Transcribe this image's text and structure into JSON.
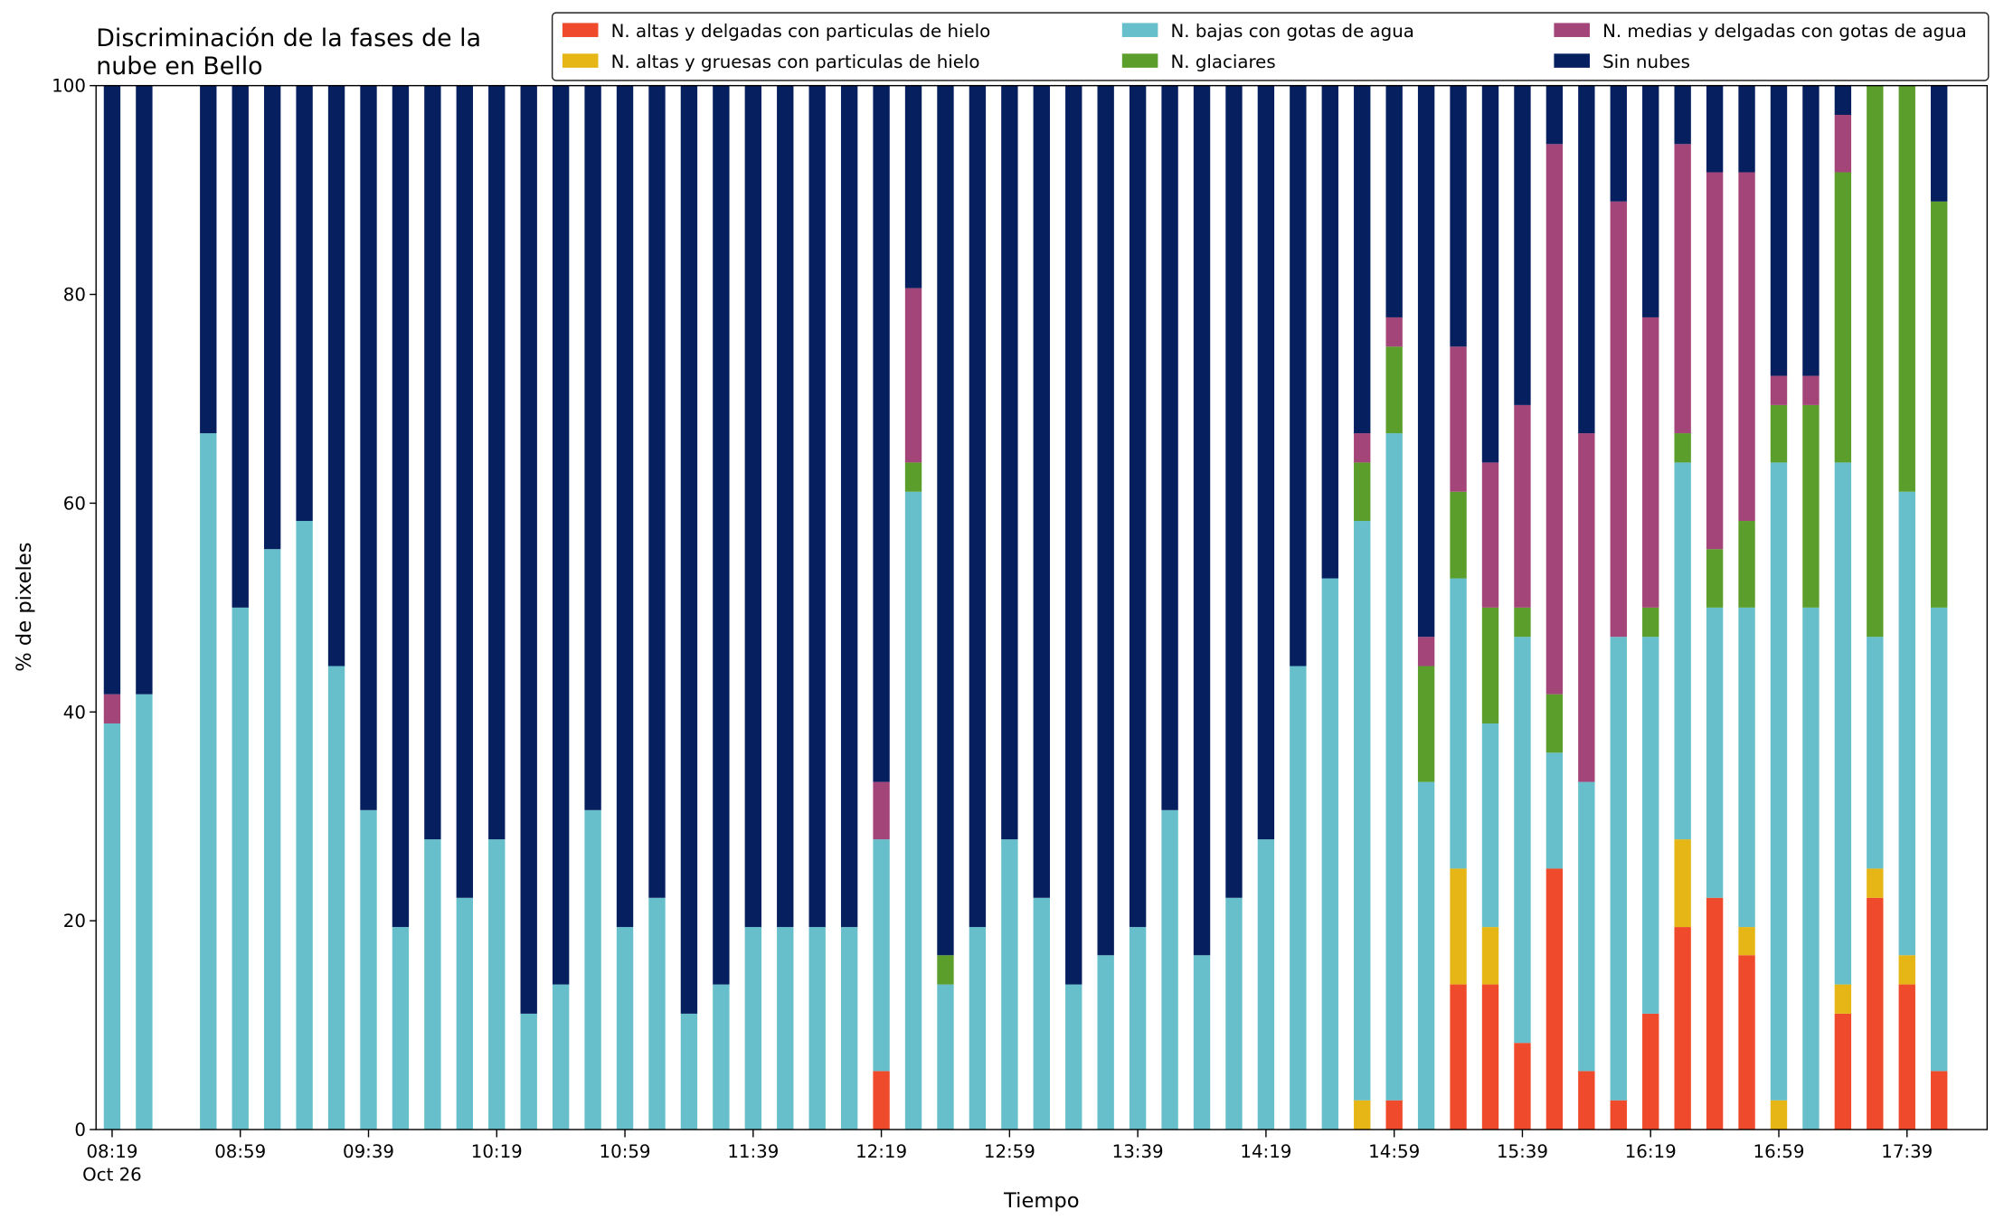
{
  "chart_data": {
    "type": "stacked_bar",
    "title": [
      "Discriminación de la fases de la",
      "nube en Bello"
    ],
    "xlabel": "Tiempo",
    "ylabel": "% de pixeles",
    "x": [
      "08:19",
      "08:29",
      "08:49",
      "08:59",
      "09:09",
      "09:19",
      "09:29",
      "09:39",
      "09:49",
      "09:59",
      "10:09",
      "10:19",
      "10:29",
      "10:39",
      "10:49",
      "10:59",
      "11:09",
      "11:19",
      "11:29",
      "11:39",
      "11:49",
      "11:59",
      "12:09",
      "12:19",
      "12:29",
      "12:39",
      "12:49",
      "12:59",
      "13:09",
      "13:19",
      "13:29",
      "13:39",
      "13:49",
      "13:59",
      "14:09",
      "14:19",
      "14:29",
      "14:39",
      "14:49",
      "14:59",
      "15:09",
      "15:19",
      "15:29",
      "15:39",
      "15:49",
      "15:59",
      "16:09",
      "16:19",
      "16:29",
      "16:39",
      "16:49",
      "16:59",
      "17:09",
      "17:19",
      "17:29",
      "17:39",
      "17:49"
    ],
    "xlim": [
      "08:14",
      "18:04"
    ],
    "xticks": [
      "08:19",
      "08:59",
      "09:39",
      "10:19",
      "10:59",
      "11:39",
      "12:19",
      "12:59",
      "13:39",
      "14:19",
      "14:59",
      "15:39",
      "16:19",
      "16:59",
      "17:39"
    ],
    "date_label": "Oct 26",
    "ylim": [
      0,
      100
    ],
    "yticks": [
      0,
      20,
      40,
      60,
      80,
      100
    ],
    "legend": {
      "position": "top-right",
      "ncol": 3
    },
    "series": [
      {
        "name": "N. altas y delgadas con particulas de hielo",
        "color": "#ef4a2b",
        "values": [
          0,
          0,
          0,
          0,
          0,
          0,
          0,
          0,
          0,
          0,
          0,
          0,
          0,
          0,
          0,
          0,
          0,
          0,
          0,
          0,
          0,
          0,
          0,
          5.6,
          0,
          0,
          0,
          0,
          0,
          0,
          0,
          0,
          0,
          0,
          0,
          0,
          0,
          0,
          0,
          2.8,
          0,
          13.9,
          13.9,
          8.3,
          25,
          5.6,
          2.8,
          11.1,
          19.4,
          22.2,
          16.7,
          0,
          0,
          11.1,
          22.2,
          13.9,
          5.6
        ]
      },
      {
        "name": "N. altas y gruesas con particulas de hielo",
        "color": "#e6b616",
        "values": [
          0,
          0,
          0,
          0,
          0,
          0,
          0,
          0,
          0,
          0,
          0,
          0,
          0,
          0,
          0,
          0,
          0,
          0,
          0,
          0,
          0,
          0,
          0,
          0,
          0,
          0,
          0,
          0,
          0,
          0,
          0,
          0,
          0,
          0,
          0,
          0,
          0,
          0,
          2.8,
          0,
          0,
          11.1,
          5.5,
          0,
          0,
          0,
          0,
          0,
          8.4,
          0,
          2.7,
          2.8,
          0,
          2.8,
          2.8,
          2.8,
          0
        ]
      },
      {
        "name": "N. bajas con gotas de agua",
        "color": "#66bfcb",
        "values": [
          38.9,
          41.7,
          66.7,
          50,
          55.6,
          58.3,
          44.4,
          30.6,
          19.4,
          27.8,
          22.2,
          27.8,
          11.1,
          13.9,
          30.6,
          19.4,
          22.2,
          11.1,
          13.9,
          19.4,
          19.4,
          19.4,
          19.4,
          22.2,
          61.1,
          13.9,
          19.4,
          27.8,
          22.2,
          13.9,
          16.7,
          19.4,
          30.6,
          16.7,
          22.2,
          27.8,
          44.4,
          52.8,
          55.5,
          63.9,
          33.3,
          27.8,
          19.5,
          38.9,
          11.1,
          27.7,
          44.4,
          36.1,
          36.1,
          27.8,
          30.6,
          61.1,
          50,
          50,
          22.2,
          44.4,
          44.4
        ]
      },
      {
        "name": "N. glaciares",
        "color": "#5c9e2c",
        "values": [
          0,
          0,
          0,
          0,
          0,
          0,
          0,
          0,
          0,
          0,
          0,
          0,
          0,
          0,
          0,
          0,
          0,
          0,
          0,
          0,
          0,
          0,
          0,
          0,
          2.8,
          2.8,
          0,
          0,
          0,
          0,
          0,
          0,
          0,
          0,
          0,
          0,
          0,
          0,
          5.6,
          8.3,
          11.1,
          8.3,
          11.1,
          2.8,
          5.6,
          0,
          0,
          2.8,
          2.8,
          5.6,
          8.3,
          5.5,
          19.4,
          27.8,
          52.8,
          38.9,
          38.9
        ]
      },
      {
        "name": "N. medias y delgadas con gotas de agua",
        "color": "#a4457a",
        "values": [
          2.8,
          0,
          0,
          0,
          0,
          0,
          0,
          0,
          0,
          0,
          0,
          0,
          0,
          0,
          0,
          0,
          0,
          0,
          0,
          0,
          0,
          0,
          0,
          5.5,
          16.7,
          0,
          0,
          0,
          0,
          0,
          0,
          0,
          0,
          0,
          0,
          0,
          0,
          0,
          2.8,
          2.8,
          2.8,
          13.9,
          13.9,
          19.4,
          52.7,
          33.4,
          41.7,
          27.8,
          27.7,
          36.1,
          33.4,
          2.8,
          2.8,
          5.5,
          0,
          0,
          0
        ]
      },
      {
        "name": "Sin nubes",
        "color": "#061f5f",
        "values": [
          58.3,
          58.3,
          33.3,
          50,
          44.4,
          41.7,
          55.6,
          69.4,
          80.6,
          72.2,
          77.8,
          72.2,
          88.9,
          86.1,
          69.4,
          80.6,
          77.8,
          88.9,
          86.1,
          80.6,
          80.6,
          80.6,
          80.6,
          66.7,
          19.4,
          83.3,
          80.6,
          72.2,
          77.8,
          86.1,
          83.3,
          80.6,
          69.4,
          83.3,
          77.8,
          72.2,
          55.6,
          47.2,
          33.3,
          22.2,
          52.8,
          25,
          36.1,
          30.6,
          5.6,
          33.3,
          11.1,
          22.2,
          5.6,
          8.3,
          8.3,
          27.8,
          27.8,
          2.8,
          0,
          0,
          11.1
        ]
      }
    ]
  }
}
